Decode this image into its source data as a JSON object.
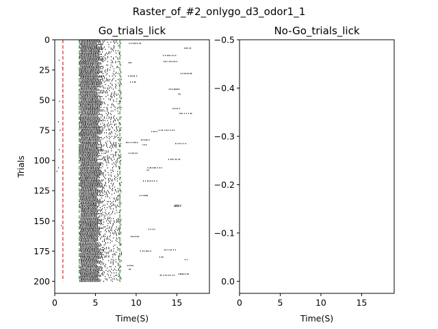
{
  "figure": {
    "suptitle": "Raster_of_#2_onlygo_d3_odor1_1"
  },
  "chart_data": [
    {
      "type": "scatter",
      "marker": "vertical-tick",
      "title": "Go_trials_lick",
      "xlabel": "Time(S)",
      "ylabel": "Trials",
      "xlim": [
        0,
        19
      ],
      "ylim": [
        210,
        0
      ],
      "y_inverted": true,
      "xticks": [
        0,
        5,
        10,
        15
      ],
      "xtick_labels": [
        "0",
        "5",
        "10",
        "15"
      ],
      "yticks": [
        0,
        25,
        50,
        75,
        100,
        125,
        150,
        175,
        200
      ],
      "ytick_labels": [
        "0",
        "25",
        "50",
        "75",
        "100",
        "125",
        "150",
        "175",
        "200"
      ],
      "n_trials": 201,
      "reference_lines": [
        {
          "x": 1.0,
          "y_range": [
            0,
            200
          ],
          "color": "#d62728",
          "style": "dashed"
        },
        {
          "x": 3.0,
          "y_range": [
            0,
            200
          ],
          "color": "#2ca02c",
          "style": "dashed"
        },
        {
          "x": 8.0,
          "y_range": [
            0,
            200
          ],
          "color": "#2ca02c",
          "style": "dashed"
        }
      ],
      "lick_distribution": {
        "dense_window": [
          3.0,
          5.6
        ],
        "sparse_window": [
          5.6,
          8.2
        ],
        "late_range": [
          8.2,
          17.5
        ],
        "early_range": [
          0.0,
          1.0
        ]
      },
      "grid": false
    },
    {
      "type": "scatter",
      "title": "No-Go_trials_lick",
      "xlabel": "Time(S)",
      "ylabel": "",
      "xlim": [
        0,
        19
      ],
      "ylim": [
        0.025,
        -0.5
      ],
      "y_inverted": true,
      "xticks": [
        0,
        5,
        10,
        15
      ],
      "xtick_labels": [
        "0",
        "5",
        "10",
        "15"
      ],
      "yticks": [
        0.0,
        -0.1,
        -0.2,
        -0.3,
        -0.4,
        -0.5
      ],
      "ytick_labels": [
        "0.0",
        "−0.1",
        "−0.2",
        "−0.3",
        "−0.4",
        "−0.5"
      ],
      "points": [],
      "grid": false
    }
  ]
}
